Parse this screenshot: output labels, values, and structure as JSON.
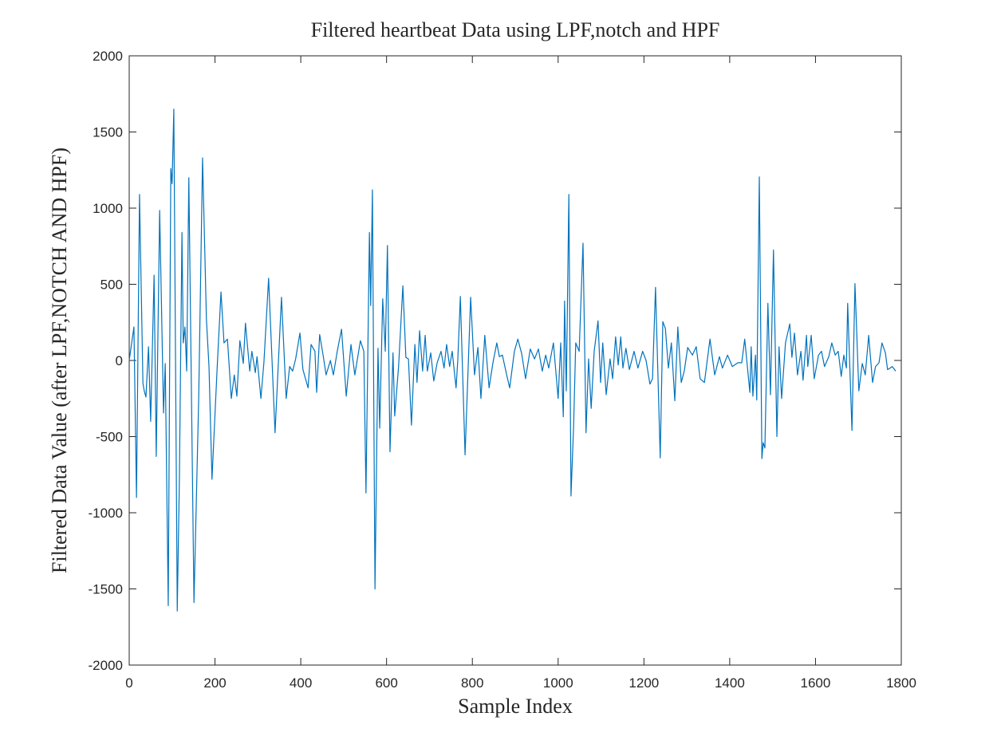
{
  "chart_data": {
    "type": "line",
    "title": "Filtered heartbeat Data using LPF,notch and HPF",
    "xlabel": "Sample Index",
    "ylabel": "Filtered Data Value (after LPF,NOTCH AND HPF)",
    "xlim": [
      0,
      1800
    ],
    "ylim": [
      -2000,
      2000
    ],
    "xticks": [
      0,
      200,
      400,
      600,
      800,
      1000,
      1200,
      1400,
      1600,
      1800
    ],
    "yticks": [
      -2000,
      -1500,
      -1000,
      -500,
      0,
      500,
      1000,
      1500,
      2000
    ],
    "grid": false,
    "x": [
      0,
      11,
      17,
      24,
      32,
      35,
      39,
      45,
      50,
      58,
      63,
      71,
      80,
      84,
      91,
      97,
      100,
      104,
      112,
      117,
      123,
      126,
      130,
      134,
      139,
      151,
      162,
      171,
      180,
      186,
      193,
      205,
      214,
      221,
      229,
      238,
      245,
      251,
      258,
      266,
      271,
      281,
      286,
      294,
      298,
      307,
      314,
      325,
      340,
      355,
      366,
      374,
      381,
      388,
      398,
      405,
      417,
      424,
      433,
      437,
      444,
      452,
      459,
      469,
      476,
      485,
      495,
      506,
      517,
      526,
      539,
      547,
      552,
      560,
      563,
      567,
      573,
      580,
      584,
      591,
      597,
      602,
      608,
      615,
      619,
      628,
      638,
      645,
      651,
      658,
      666,
      671,
      677,
      684,
      690,
      695,
      703,
      710,
      718,
      727,
      734,
      740,
      747,
      753,
      762,
      766,
      772,
      783,
      796,
      805,
      813,
      820,
      829,
      839,
      848,
      857,
      863,
      870,
      880,
      887,
      898,
      906,
      915,
      924,
      935,
      945,
      954,
      963,
      971,
      978,
      989,
      1000,
      1006,
      1012,
      1015,
      1019,
      1025,
      1030,
      1036,
      1041,
      1049,
      1058,
      1065,
      1071,
      1077,
      1084,
      1093,
      1099,
      1104,
      1112,
      1121,
      1127,
      1134,
      1140,
      1146,
      1151,
      1158,
      1166,
      1177,
      1186,
      1197,
      1205,
      1214,
      1220,
      1227,
      1238,
      1244,
      1250,
      1257,
      1264,
      1272,
      1279,
      1287,
      1294,
      1302,
      1313,
      1322,
      1331,
      1341,
      1354,
      1365,
      1376,
      1383,
      1395,
      1406,
      1419,
      1428,
      1435,
      1447,
      1450,
      1454,
      1460,
      1463,
      1469,
      1475,
      1478,
      1482,
      1489,
      1495,
      1502,
      1510,
      1515,
      1521,
      1530,
      1540,
      1545,
      1551,
      1558,
      1566,
      1571,
      1579,
      1582,
      1590,
      1597,
      1607,
      1614,
      1621,
      1631,
      1638,
      1646,
      1653,
      1660,
      1666,
      1672,
      1675,
      1685,
      1692,
      1701,
      1709,
      1716,
      1724,
      1733,
      1740,
      1748,
      1755,
      1763,
      1768,
      1774,
      1779,
      1787
    ],
    "series": [
      {
        "name": "Filtered Data",
        "color": "#0072bd",
        "values": [
          0,
          220,
          -900,
          1090,
          -150,
          -200,
          -240,
          90,
          -400,
          560,
          -630,
          985,
          -345,
          -20,
          -1610,
          1260,
          1160,
          1650,
          -1645,
          -775,
          840,
          115,
          220,
          -70,
          1200,
          -1590,
          -250,
          1330,
          270,
          -40,
          -780,
          -50,
          450,
          115,
          140,
          -250,
          -95,
          -235,
          130,
          -20,
          245,
          -70,
          60,
          -80,
          25,
          -250,
          -15,
          540,
          -475,
          415,
          -250,
          -40,
          -70,
          10,
          180,
          -60,
          -180,
          105,
          60,
          -210,
          170,
          35,
          -95,
          0,
          -95,
          60,
          205,
          -235,
          105,
          -95,
          130,
          60,
          -870,
          840,
          360,
          1120,
          -1500,
          80,
          -445,
          405,
          60,
          755,
          -600,
          50,
          -365,
          -40,
          490,
          20,
          10,
          -425,
          105,
          -145,
          195,
          -70,
          165,
          -70,
          50,
          -135,
          -15,
          60,
          -50,
          105,
          -40,
          60,
          -180,
          0,
          420,
          -620,
          415,
          -95,
          85,
          -250,
          165,
          -180,
          -15,
          115,
          25,
          35,
          -95,
          -180,
          60,
          140,
          45,
          -120,
          75,
          10,
          75,
          -70,
          35,
          -50,
          115,
          -250,
          115,
          -370,
          390,
          -200,
          1090,
          -890,
          -435,
          115,
          60,
          770,
          -475,
          10,
          -315,
          60,
          260,
          -145,
          115,
          -225,
          10,
          -120,
          155,
          -30,
          155,
          -50,
          80,
          -60,
          60,
          -50,
          60,
          0,
          -155,
          -120,
          480,
          -640,
          255,
          210,
          -50,
          115,
          -265,
          220,
          -145,
          -70,
          85,
          35,
          90,
          -120,
          -145,
          140,
          -95,
          25,
          -50,
          35,
          -40,
          -15,
          -15,
          140,
          -210,
          90,
          -235,
          35,
          -260,
          1205,
          -645,
          -540,
          -575,
          375,
          -225,
          725,
          -500,
          90,
          -250,
          115,
          240,
          20,
          180,
          -95,
          60,
          -130,
          165,
          -40,
          165,
          -120,
          35,
          60,
          -40,
          25,
          115,
          35,
          60,
          -105,
          35,
          -50,
          375,
          -460,
          505,
          -200,
          -20,
          -95,
          165,
          -145,
          -40,
          -15,
          115,
          50,
          -60,
          -50,
          -40,
          -70
        ]
      }
    ]
  }
}
